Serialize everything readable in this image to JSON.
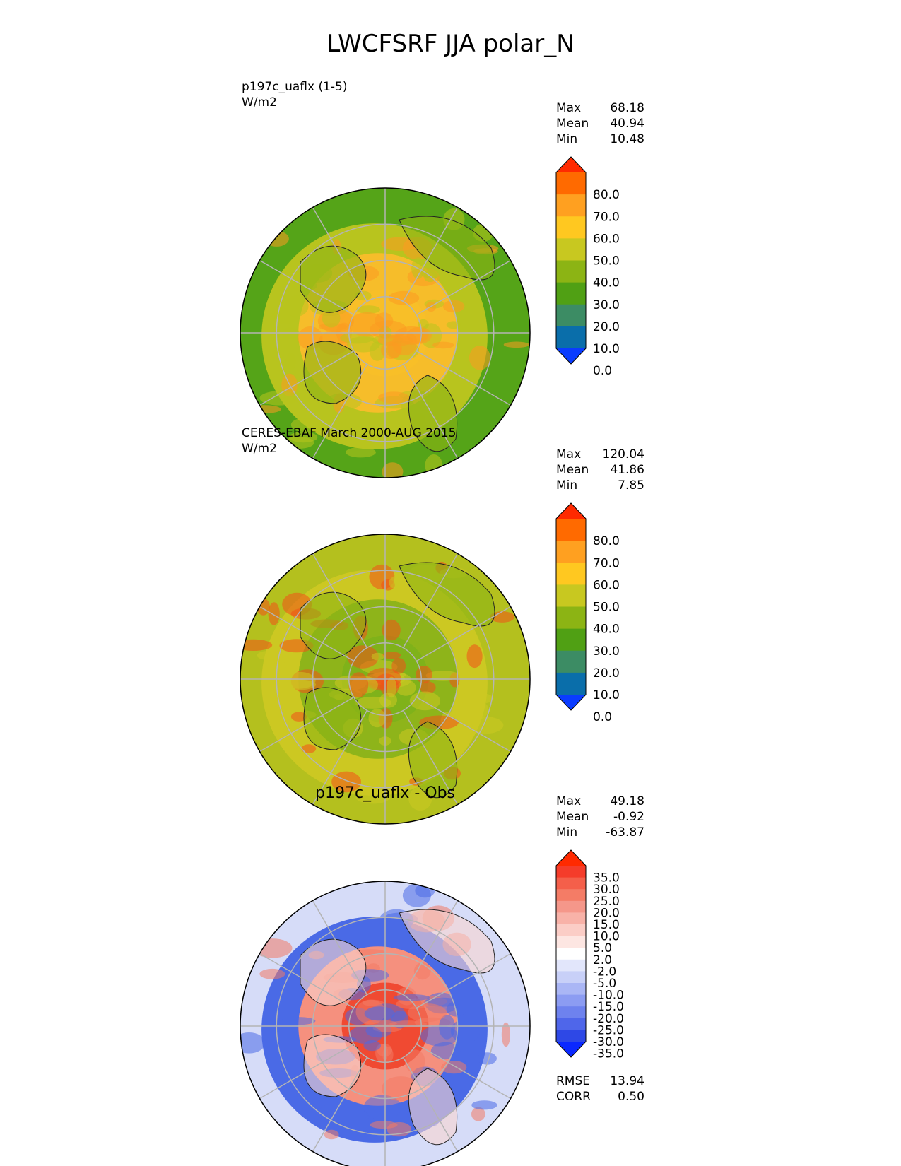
{
  "figure_title": "LWCFSRF JJA polar_N",
  "panels": [
    {
      "left_title": "p197c_uaflx (1-5)",
      "units": "W/m2",
      "center_title": "",
      "stats": [
        {
          "label": "Max",
          "value": "68.18"
        },
        {
          "label": "Mean",
          "value": "40.94"
        },
        {
          "label": "Min",
          "value": "10.48"
        }
      ],
      "colorbar": {
        "labels": [
          "80.0",
          "70.0",
          "60.0",
          "50.0",
          "40.0",
          "30.0",
          "20.0",
          "10.0",
          "0.0"
        ],
        "colors_top_to_bottom": [
          "#ff2a00",
          "#ff6a00",
          "#ffa020",
          "#ffc820",
          "#c8c820",
          "#8cb414",
          "#50a014",
          "#3c8c64",
          "#0a6eaa",
          "#0a3cff"
        ]
      },
      "map_colors": {
        "ring0": "#f8bf28",
        "ring1": "#f6bd2a",
        "ring2": "#b8c41e",
        "ring3": "#55a418",
        "land_hot": "#fb9a20",
        "greenland": "#8cb414"
      }
    },
    {
      "left_title": "CERES-EBAF March 2000-AUG 2015",
      "units": "W/m2",
      "center_title": "",
      "stats": [
        {
          "label": "Max",
          "value": "120.04"
        },
        {
          "label": "Mean",
          "value": "41.86"
        },
        {
          "label": "Min",
          "value": "7.85"
        }
      ],
      "colorbar": {
        "labels": [
          "80.0",
          "70.0",
          "60.0",
          "50.0",
          "40.0",
          "30.0",
          "20.0",
          "10.0",
          "0.0"
        ],
        "colors_top_to_bottom": [
          "#ff2a00",
          "#ff6a00",
          "#ffa020",
          "#ffc820",
          "#c8c820",
          "#8cb414",
          "#50a014",
          "#3c8c64",
          "#0a6eaa",
          "#0a3cff"
        ]
      },
      "map_colors": {
        "ring0": "#7fb21a",
        "ring1": "#8eb41a",
        "ring2": "#ccc822",
        "ring3": "#b4c01e",
        "land_hot": "#f25018",
        "greenland": "#8cb414"
      }
    },
    {
      "left_title": "",
      "units": "",
      "center_title": "p197c_uaflx - Obs",
      "stats": [
        {
          "label": "Max",
          "value": "49.18"
        },
        {
          "label": "Mean",
          "value": "-0.92"
        },
        {
          "label": "Min",
          "value": "-63.87"
        }
      ],
      "colorbar": {
        "labels": [
          "35.0",
          "30.0",
          "25.0",
          "20.0",
          "15.0",
          "10.0",
          "5.0",
          "2.0",
          "-2.0",
          "-5.0",
          "-10.0",
          "-15.0",
          "-20.0",
          "-25.0",
          "-30.0",
          "-35.0"
        ],
        "colors_top_to_bottom": [
          "#ff2a00",
          "#f53c2a",
          "#f45f4a",
          "#f47c66",
          "#f5978a",
          "#f8b2a8",
          "#fbcdc6",
          "#fde6e2",
          "#ffffff",
          "#e2e6fb",
          "#c8d0f8",
          "#aab6f5",
          "#8c9cf2",
          "#6e82ee",
          "#4f66ea",
          "#2e48e6",
          "#0a28ff"
        ]
      },
      "map_colors": {
        "ring0": "#f04a32",
        "ring1": "#f5907e",
        "ring2": "#4a6ae6",
        "ring3": "#d6dcf8",
        "land_hot": "#f37a64",
        "greenland": "#f9d6d0"
      },
      "bottom_stats": [
        {
          "label": "RMSE",
          "value": "13.94"
        },
        {
          "label": "CORR",
          "value": "0.50"
        }
      ]
    }
  ],
  "chart_data": {
    "type": "heatmap",
    "title": "LWCFSRF JJA polar_N",
    "projection": "north polar stereographic",
    "subplots": [
      {
        "name": "p197c_uaflx (1-5)",
        "units": "W/m2",
        "max": 68.18,
        "mean": 40.94,
        "min": 10.48,
        "levels": [
          0,
          10,
          20,
          30,
          40,
          50,
          60,
          70,
          80
        ]
      },
      {
        "name": "CERES-EBAF March 2000-AUG 2015",
        "units": "W/m2",
        "max": 120.04,
        "mean": 41.86,
        "min": 7.85,
        "levels": [
          0,
          10,
          20,
          30,
          40,
          50,
          60,
          70,
          80
        ]
      },
      {
        "name": "p197c_uaflx - Obs",
        "max": 49.18,
        "mean": -0.92,
        "min": -63.87,
        "rmse": 13.94,
        "corr": 0.5,
        "levels": [
          -35,
          -30,
          -25,
          -20,
          -15,
          -10,
          -5,
          -2,
          2,
          5,
          10,
          15,
          20,
          25,
          30,
          35
        ]
      }
    ]
  }
}
